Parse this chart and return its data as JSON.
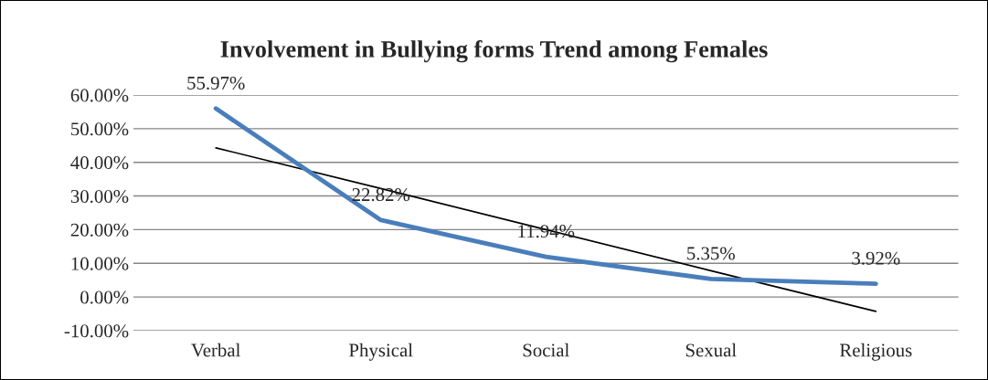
{
  "chart_data": {
    "type": "line",
    "title": "Involvement in Bullying forms Trend among Females",
    "categories": [
      "Verbal",
      "Physical",
      "Social",
      "Sexual",
      "Religious"
    ],
    "series": [
      {
        "color": "#4a7ebb",
        "values": [
          55.97,
          22.82,
          11.94,
          5.35,
          3.92
        ],
        "value_labels": [
          "55.97%",
          "22.82%",
          "11.94%",
          "5.35%",
          "3.92%"
        ]
      },
      {
        "color": "#000000",
        "values": [
          44.3,
          32.2,
          20.0,
          7.8,
          -4.3
        ]
      }
    ],
    "ylim": [
      -10,
      60
    ],
    "yticks": [
      {
        "value": -10,
        "label": "-10.00%"
      },
      {
        "value": 0,
        "label": "0.00%"
      },
      {
        "value": 10,
        "label": "10.00%"
      },
      {
        "value": 20,
        "label": "20.00%"
      },
      {
        "value": 30,
        "label": "30.00%"
      },
      {
        "value": 40,
        "label": "40.00%"
      },
      {
        "value": 50,
        "label": "50.00%"
      },
      {
        "value": 60,
        "label": "60.00%"
      }
    ],
    "grid": "y",
    "legend": false,
    "marker": "none",
    "line_style": "solid"
  }
}
